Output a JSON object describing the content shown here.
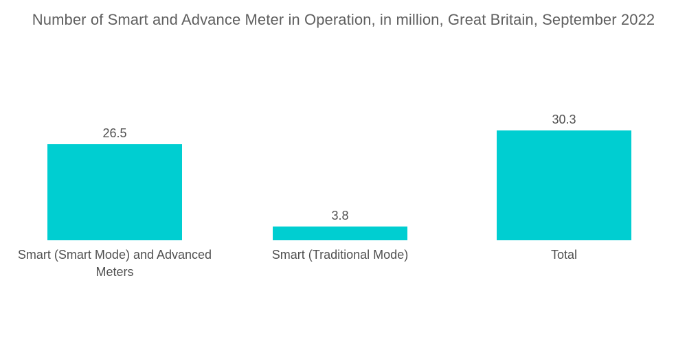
{
  "chart_data": {
    "type": "bar",
    "title": "Number of Smart and Advance Meter in Operation, in million, Great Britain, September 2022",
    "categories": [
      "Smart (Smart Mode) and Advanced Meters",
      "Smart (Traditional Mode)",
      "Total"
    ],
    "category_lines": [
      [
        "Smart (Smart Mode) and Advanced",
        "Meters"
      ],
      [
        "Smart (Traditional Mode)"
      ],
      [
        "Total"
      ]
    ],
    "values": [
      26.5,
      3.8,
      30.3
    ],
    "value_labels": [
      "26.5",
      "3.8",
      "30.3"
    ],
    "xlabel": "",
    "ylabel": "",
    "ylim": [
      0,
      30.3
    ],
    "grid": false,
    "legend": "none",
    "colors": {
      "bar": "#00CED1"
    }
  }
}
